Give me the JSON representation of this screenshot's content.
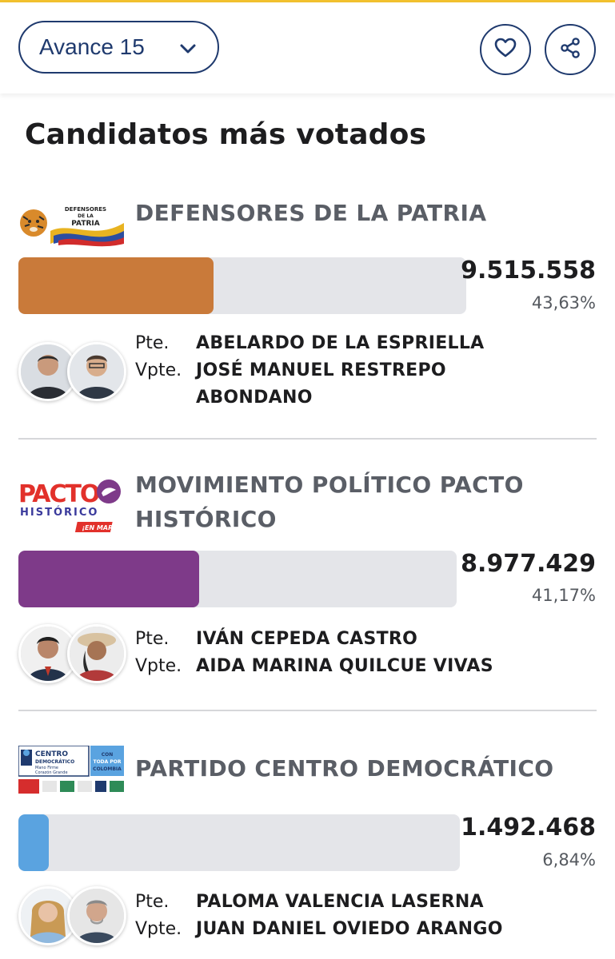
{
  "header": {
    "dropdown_label": "Avance 15",
    "icons": [
      "chevron-down-icon",
      "heart-icon",
      "share-icon"
    ],
    "accent_color": "#f2c12e",
    "brand_color": "#1f3a6e"
  },
  "section_title": "Candidatos más votados",
  "candidates": [
    {
      "party": "DEFENSORES DE LA PATRIA",
      "logo_text": [
        "DEFENSORES",
        "DE LA",
        "PATRIA"
      ],
      "votes": "9.515.558",
      "percent": "43,63%",
      "percent_value": 43.63,
      "color": "#c97a3a",
      "roles": [
        "Pte.",
        "Vpte."
      ],
      "president": "ABELARDO DE LA ESPRIELLA",
      "vice_president": [
        "JOSÉ MANUEL RESTREPO",
        "ABONDANO"
      ]
    },
    {
      "party": "MOVIMIENTO POLÍTICO PACTO HISTÓRICO",
      "logo_text": [
        "PACTO",
        "HISTÓRICO",
        "¡EN MARCHA!"
      ],
      "votes": "8.977.429",
      "percent": "41,17%",
      "percent_value": 41.17,
      "color": "#7e3a89",
      "roles": [
        "Pte.",
        "Vpte."
      ],
      "president": "IVÁN CEPEDA CASTRO",
      "vice_president": [
        "AIDA MARINA QUILCUE VIVAS"
      ]
    },
    {
      "party": "PARTIDO CENTRO DEMOCRÁTICO",
      "logo_text": [
        "CENTRO",
        "DEMOCRÁTICO",
        "Mano Firme",
        "Corazón Grande",
        "CON",
        "TODA POR",
        "COLOMBIA"
      ],
      "votes": "1.492.468",
      "percent": "6,84%",
      "percent_value": 6.84,
      "color": "#5aa3e0",
      "roles": [
        "Pte.",
        "Vpte."
      ],
      "president": "PALOMA VALENCIA LASERNA",
      "vice_president": [
        "JUAN DANIEL OVIEDO ARANGO"
      ]
    }
  ]
}
